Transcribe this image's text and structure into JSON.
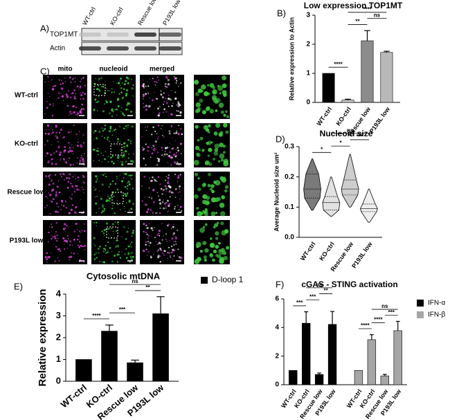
{
  "panels": {
    "A": {
      "label": "A)",
      "lanes": [
        "WT-ctrl",
        "KO-ctrl",
        "Rescue low",
        "P193L low"
      ],
      "rows": [
        "TOP1MT",
        "Actin"
      ]
    },
    "C": {
      "label": "C)",
      "columns": [
        "mito",
        "nucleoid",
        "merged"
      ],
      "rows": [
        "WT-ctrl",
        "KO-ctrl",
        "Rescue low",
        "P193L low"
      ]
    }
  },
  "chart_data": [
    {
      "type": "bar",
      "panel_label": "B)",
      "title": "Low expression TOP1MT",
      "y_label": "Relative expression to Actin",
      "categories": [
        "WT-ctrl",
        "KO-ctrl",
        "Rescue low",
        "P193L low"
      ],
      "values": [
        1,
        0.08,
        2.12,
        1.72
      ],
      "errors": [
        0,
        0.03,
        0.35,
        0.04
      ],
      "colors": [
        "#000000",
        "#c8c8c8",
        "#8c8c8c",
        "#b9b9b9"
      ],
      "ylim": [
        0,
        3
      ],
      "yticks": [
        0,
        1,
        2,
        3
      ],
      "annotations": [
        {
          "text": "****",
          "from": "WT-ctrl",
          "to": "KO-ctrl"
        },
        {
          "text": "**",
          "from": "KO-ctrl",
          "to": "Rescue low"
        },
        {
          "text": "ns",
          "from": "Rescue low",
          "to": "P193L low"
        },
        {
          "text": "****",
          "from": "KO-ctrl",
          "to": "P193L low"
        }
      ]
    },
    {
      "type": "violin",
      "panel_label": "D)",
      "title": "Nucleoid size",
      "y_label": "Average Nucleoid size um²",
      "categories": [
        "WT-ctrl",
        "KO-ctrl",
        "Rescue low",
        "P193L low"
      ],
      "stats": [
        {
          "min": 0.09,
          "q1": 0.13,
          "median": 0.16,
          "q3": 0.21,
          "max": 0.26
        },
        {
          "min": 0.07,
          "q1": 0.09,
          "median": 0.115,
          "q3": 0.135,
          "max": 0.2
        },
        {
          "min": 0.1,
          "q1": 0.14,
          "median": 0.16,
          "q3": 0.19,
          "max": 0.275
        },
        {
          "min": 0.05,
          "q1": 0.085,
          "median": 0.095,
          "q3": 0.11,
          "max": 0.16
        }
      ],
      "colors": [
        "#7a7a7a",
        "#e2e2e2",
        "#cdcdcd",
        "#eeeeee"
      ],
      "ylim": [
        0,
        0.3
      ],
      "yticks": [
        {
          "value": 0,
          "label": "0.0"
        },
        0.1,
        0.2,
        0.3
      ],
      "annotations": [
        {
          "text": "*",
          "from": "WT-ctrl",
          "to": "KO-ctrl"
        },
        {
          "text": "*",
          "from": "KO-ctrl",
          "to": "Rescue low"
        },
        {
          "text": "***",
          "from": "Rescue low",
          "to": "P193L low"
        },
        {
          "text": "ns",
          "from": "KO-ctrl",
          "to": "P193L low"
        }
      ]
    },
    {
      "type": "bar",
      "panel_label": "E)",
      "title": "Cytosolic mtDNA",
      "y_label": "Relative expression",
      "categories": [
        "WT-ctrl",
        "KO-ctrl",
        "Rescue low",
        "P193L low"
      ],
      "series": [
        {
          "name": "D-loop 1",
          "color": "#000000",
          "values": [
            1,
            2.3,
            0.85,
            3.1
          ],
          "errors": [
            0,
            0.28,
            0.12,
            0.78
          ]
        }
      ],
      "ylim": [
        0,
        4
      ],
      "yticks": [
        0,
        1,
        2,
        3,
        4
      ],
      "legend": "right",
      "annotations": [
        {
          "text": "****",
          "from": "WT-ctrl",
          "to": "KO-ctrl"
        },
        {
          "text": "***",
          "from": "KO-ctrl",
          "to": "Rescue low"
        },
        {
          "text": "**",
          "from": "Rescue low",
          "to": "P193L low"
        },
        {
          "text": "ns",
          "from": "KO-ctrl",
          "to": "P193L low"
        }
      ]
    },
    {
      "type": "bar",
      "panel_label": "F)",
      "title": "cGAS - STING activation",
      "categories": [
        "WT-ctrl",
        "KO-ctrl",
        "Rescue low",
        "P193L low"
      ],
      "series": [
        {
          "name": "IFN-α",
          "color": "#000000",
          "values": [
            1,
            4.3,
            0.72,
            4.22
          ],
          "errors": [
            0,
            0.8,
            0.1,
            0.9
          ]
        },
        {
          "name": "IFN-β",
          "color": "#a6a6a6",
          "values": [
            1,
            3.15,
            0.62,
            3.78
          ],
          "errors": [
            0,
            0.35,
            0.1,
            0.65
          ]
        }
      ],
      "ylim": [
        0,
        6
      ],
      "yticks": [
        0,
        2,
        4,
        6
      ],
      "legend": "right",
      "annotations": [
        {
          "text": "***",
          "series": "IFN-α",
          "from": "WT-ctrl",
          "to": "KO-ctrl"
        },
        {
          "text": "***",
          "series": "IFN-α",
          "from": "KO-ctrl",
          "to": "Rescue low"
        },
        {
          "text": "**",
          "series": "IFN-α",
          "from": "Rescue low",
          "to": "P193L low"
        },
        {
          "text": "ns",
          "series": "IFN-α",
          "from": "KO-ctrl",
          "to": "P193L low"
        },
        {
          "text": "****",
          "series": "IFN-β",
          "from": "WT-ctrl",
          "to": "KO-ctrl"
        },
        {
          "text": "****",
          "series": "IFN-β",
          "from": "KO-ctrl",
          "to": "Rescue low"
        },
        {
          "text": "***",
          "series": "IFN-β",
          "from": "Rescue low",
          "to": "P193L low"
        },
        {
          "text": "ns",
          "series": "IFN-β",
          "from": "KO-ctrl",
          "to": "P193L low"
        }
      ]
    }
  ]
}
